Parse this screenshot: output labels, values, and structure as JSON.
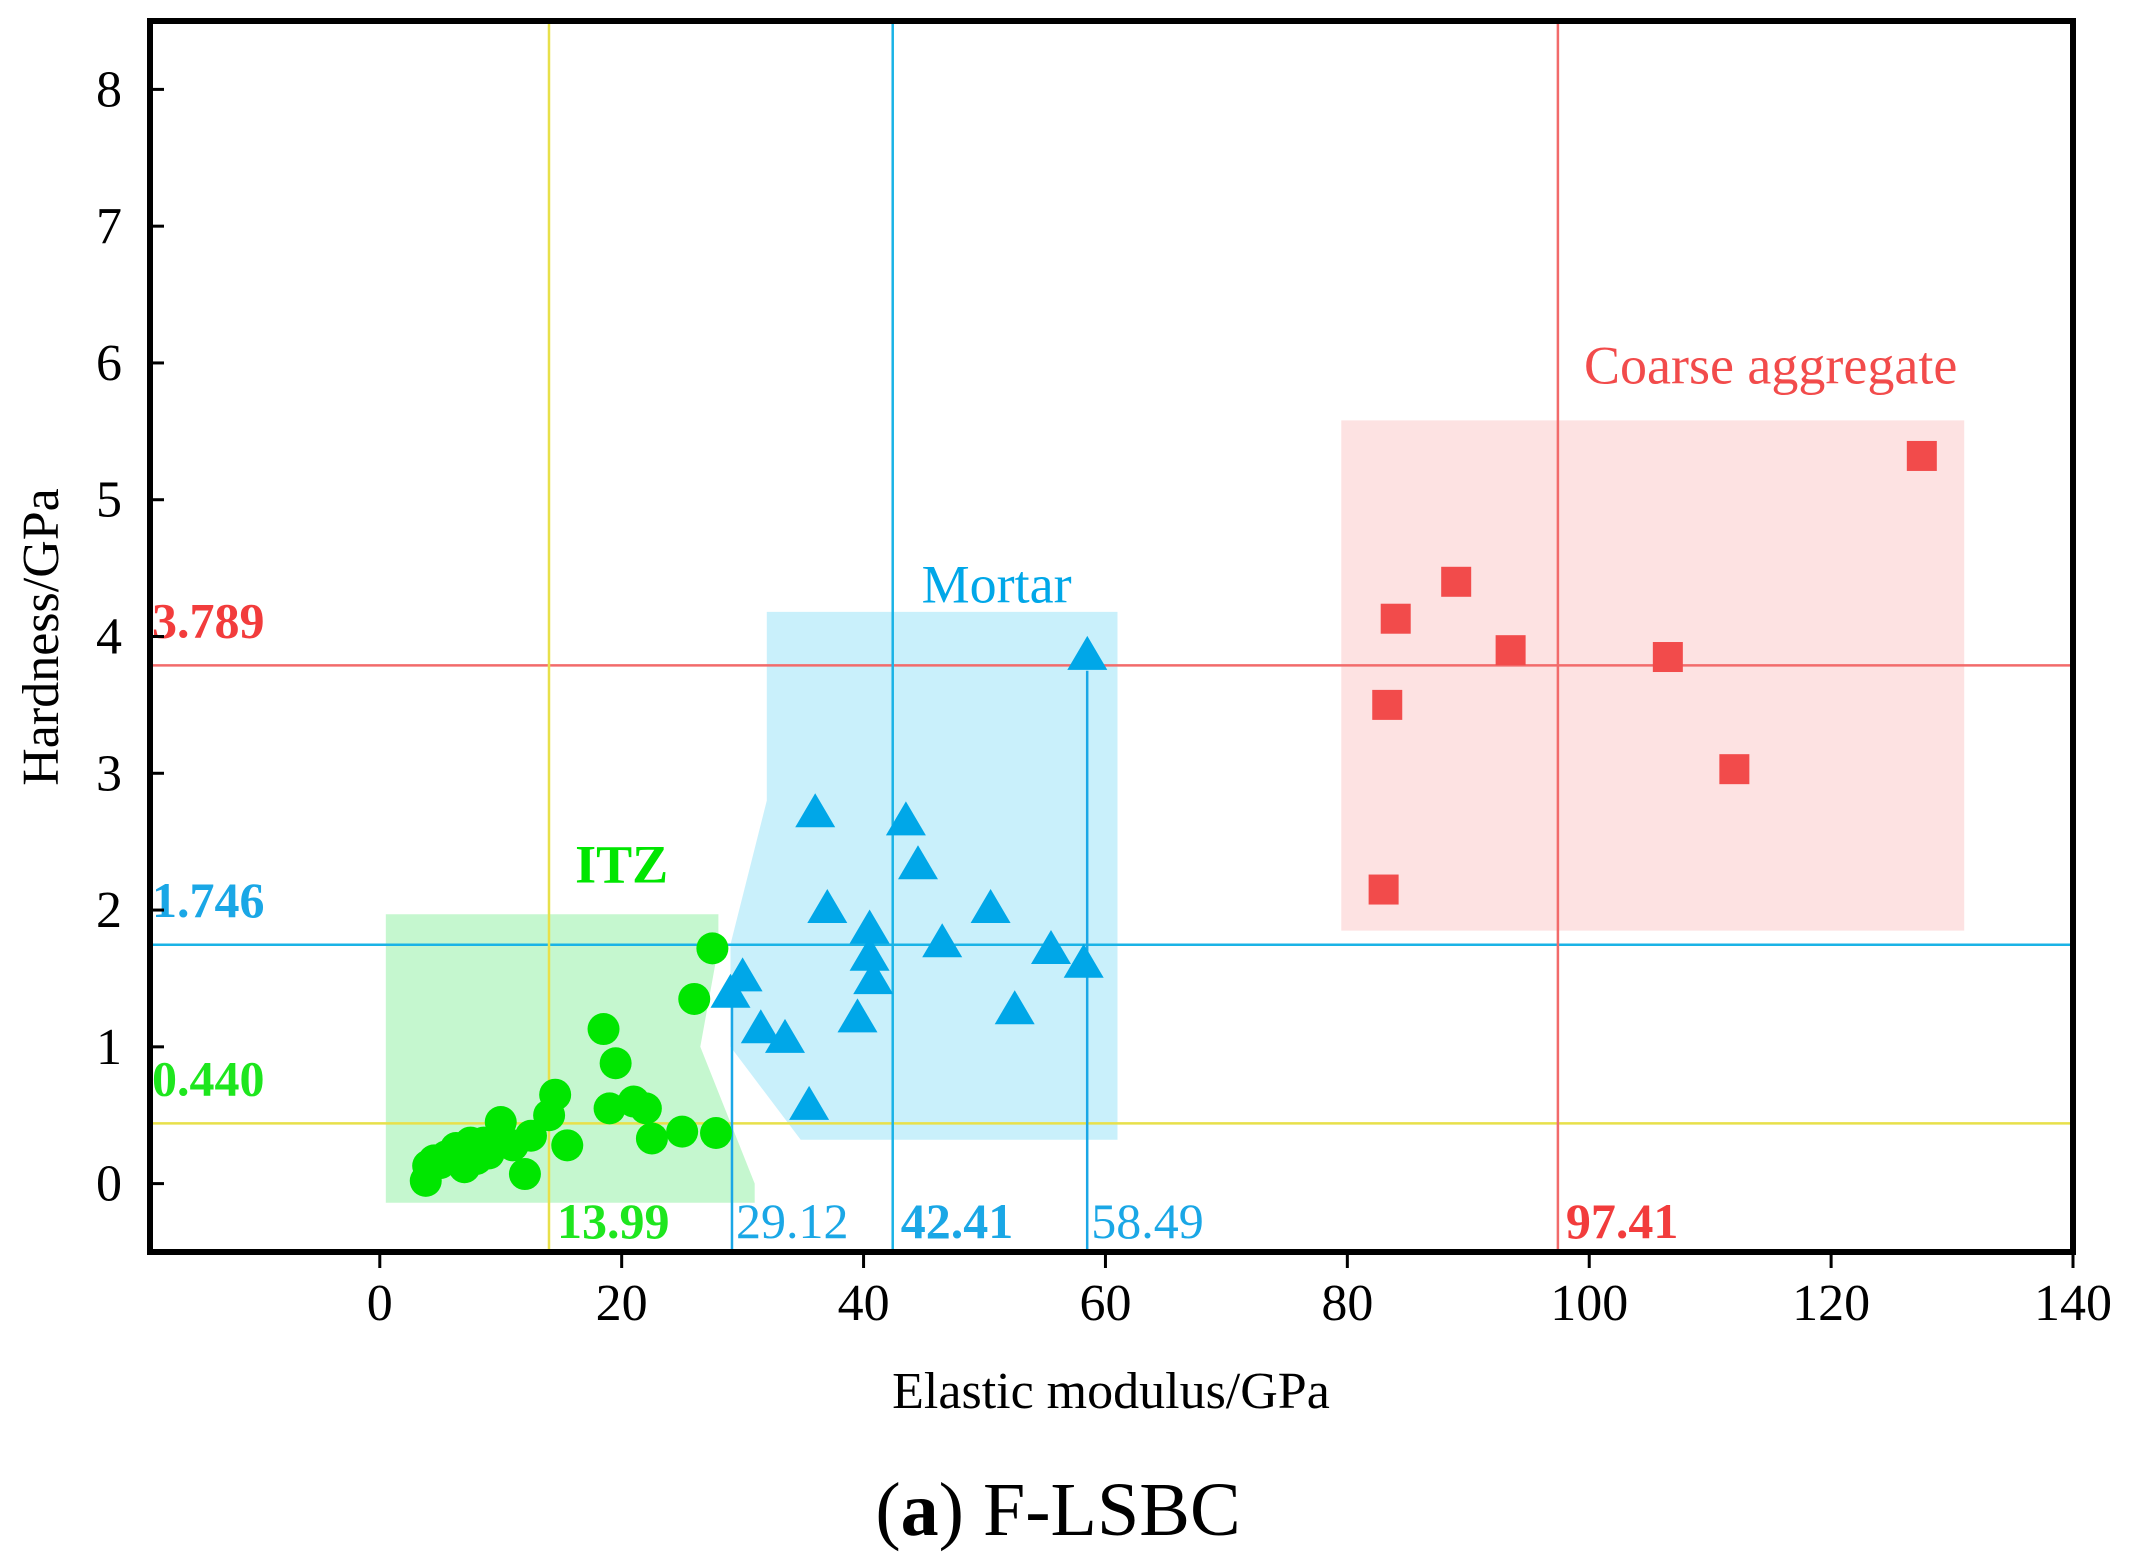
{
  "chart_data": {
    "type": "scatter",
    "caption_letter": "a",
    "caption_name": "F-LSBC",
    "xlabel": "Elastic modulus/GPa",
    "ylabel": "Hardness/GPa",
    "xlim": [
      -19,
      140
    ],
    "ylim": [
      -0.5,
      8.5
    ],
    "xticks": [
      0,
      20,
      40,
      60,
      80,
      100,
      120,
      140
    ],
    "yticks": [
      0,
      1,
      2,
      3,
      4,
      5,
      6,
      7,
      8
    ],
    "series": [
      {
        "name": "ITZ",
        "marker": "circle",
        "color": "#00e600",
        "label_x": 20,
        "label_y": 2.2,
        "region": [
          [
            0.5,
            1.97
          ],
          [
            28,
            1.97
          ],
          [
            28,
            1.73
          ],
          [
            26.5,
            1.0
          ],
          [
            31,
            0.0
          ],
          [
            31,
            -0.14
          ],
          [
            0.5,
            -0.14
          ]
        ],
        "region_color": "#c5f7cf",
        "points": [
          [
            3.8,
            0.02
          ],
          [
            4,
            0.13
          ],
          [
            4.5,
            0.17
          ],
          [
            5,
            0.15
          ],
          [
            5.5,
            0.2
          ],
          [
            6,
            0.18
          ],
          [
            6.3,
            0.26
          ],
          [
            7,
            0.12
          ],
          [
            7.2,
            0.22
          ],
          [
            7.5,
            0.3
          ],
          [
            8,
            0.18
          ],
          [
            8.3,
            0.24
          ],
          [
            8.6,
            0.3
          ],
          [
            9,
            0.22
          ],
          [
            10,
            0.45
          ],
          [
            11,
            0.28
          ],
          [
            12,
            0.07
          ],
          [
            12.5,
            0.35
          ],
          [
            14,
            0.5
          ],
          [
            14.5,
            0.65
          ],
          [
            15.5,
            0.28
          ],
          [
            18.5,
            1.13
          ],
          [
            19,
            0.55
          ],
          [
            19.5,
            0.88
          ],
          [
            21,
            0.6
          ],
          [
            22,
            0.55
          ],
          [
            22.5,
            0.33
          ],
          [
            25,
            0.38
          ],
          [
            26,
            1.35
          ],
          [
            27.5,
            1.72
          ],
          [
            27.8,
            0.37
          ]
        ]
      },
      {
        "name": "Mortar",
        "marker": "triangle",
        "color": "#00a7e8",
        "label_x": 51,
        "label_y": 4.25,
        "region": [
          [
            32,
            4.18
          ],
          [
            61,
            4.18
          ],
          [
            61,
            0.32
          ],
          [
            34.8,
            0.32
          ],
          [
            29,
            1.0
          ],
          [
            29,
            1.75
          ],
          [
            32,
            2.8
          ]
        ],
        "region_color": "#c9f0fb",
        "points": [
          [
            29,
            1.38
          ],
          [
            30,
            1.5
          ],
          [
            31.5,
            1.12
          ],
          [
            33.5,
            1.05
          ],
          [
            35.5,
            0.56
          ],
          [
            36,
            2.7
          ],
          [
            37,
            2.0
          ],
          [
            39.5,
            1.2
          ],
          [
            40.5,
            1.85
          ],
          [
            40.5,
            1.65
          ],
          [
            40.8,
            1.48
          ],
          [
            43.5,
            2.64
          ],
          [
            44.5,
            2.32
          ],
          [
            46.5,
            1.75
          ],
          [
            50.5,
            2.0
          ],
          [
            52.5,
            1.26
          ],
          [
            55.5,
            1.7
          ],
          [
            58.2,
            1.6
          ],
          [
            58.5,
            3.85
          ]
        ]
      },
      {
        "name": "Coarse aggregate",
        "marker": "square",
        "color": "#f24b4b",
        "label_x": 115,
        "label_y": 5.85,
        "region": [
          [
            79.5,
            5.58
          ],
          [
            131,
            5.58
          ],
          [
            131,
            1.85
          ],
          [
            79.5,
            1.85
          ]
        ],
        "region_color": "#fde2e2",
        "points": [
          [
            83,
            2.15
          ],
          [
            83.3,
            3.5
          ],
          [
            84,
            4.13
          ],
          [
            89,
            4.4
          ],
          [
            93.5,
            3.9
          ],
          [
            106.5,
            3.85
          ],
          [
            112,
            3.03
          ],
          [
            127.5,
            5.32
          ]
        ]
      }
    ],
    "reference_lines": [
      {
        "orientation": "horizontal",
        "value": 3.789,
        "label": "3.789",
        "color": "#f26b6b",
        "text_color": "#f23c3c",
        "bold": true
      },
      {
        "orientation": "horizontal",
        "value": 1.746,
        "label": "1.746",
        "color": "#1ab3e6",
        "text_color": "#1aa7e6",
        "bold": true
      },
      {
        "orientation": "horizontal",
        "value": 0.44,
        "label": "0.440",
        "color": "#e8e04a",
        "text_color": "#1ee61e",
        "bold": true
      },
      {
        "orientation": "vertical",
        "value": 13.99,
        "label": "13.99",
        "color": "#e8e04a",
        "text_color": "#1ee61e",
        "bold": true
      },
      {
        "orientation": "vertical",
        "value": 42.41,
        "label": "42.41",
        "color": "#1ab3e6",
        "text_color": "#1aa7e6",
        "bold": true
      },
      {
        "orientation": "vertical",
        "value": 97.41,
        "label": "97.41",
        "color": "#f26b6b",
        "text_color": "#f23c3c",
        "bold": true
      }
    ],
    "range_markers": [
      {
        "value": 29.12,
        "label": "29.12",
        "from": -0.5,
        "to": 1.3,
        "color": "#1aa7e6"
      },
      {
        "value": 58.49,
        "label": "58.49",
        "from": -0.5,
        "to": 3.75,
        "color": "#1aa7e6"
      }
    ]
  }
}
